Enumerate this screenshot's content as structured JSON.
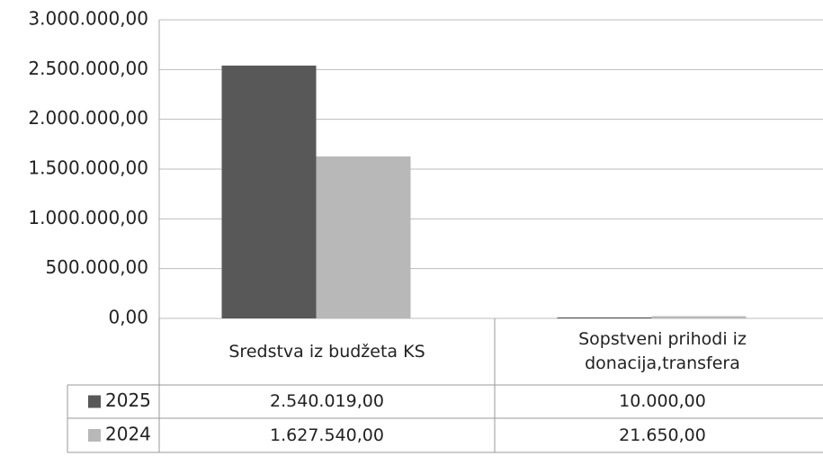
{
  "chart_data": {
    "type": "bar",
    "categories": [
      "Sredstva iz budžeta KS",
      "Sopstveni prihodi iz donacija,transfera"
    ],
    "series": [
      {
        "name": "2025",
        "color": "#585858",
        "values": [
          2540019,
          10000
        ],
        "value_labels": [
          "2.540.019,00",
          "10.000,00"
        ]
      },
      {
        "name": "2024",
        "color": "#b8b8b8",
        "values": [
          1627540,
          21650
        ],
        "value_labels": [
          "1.627.540,00",
          "21.650,00"
        ]
      }
    ],
    "ylim": [
      0,
      3000000
    ],
    "yticks": [
      {
        "value": 0,
        "label": "0,00"
      },
      {
        "value": 500000,
        "label": "500.000,00"
      },
      {
        "value": 1000000,
        "label": "1.000.000,00"
      },
      {
        "value": 1500000,
        "label": "1.500.000,00"
      },
      {
        "value": 2000000,
        "label": "2.000.000,00"
      },
      {
        "value": 2500000,
        "label": "2.500.000,00"
      },
      {
        "value": 3000000,
        "label": "3.000.000,00"
      }
    ],
    "grid": true
  }
}
